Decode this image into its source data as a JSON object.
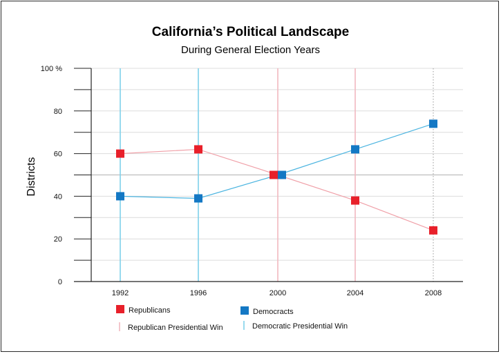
{
  "chart_data": {
    "type": "line",
    "title": "California’s Political Landscape",
    "subtitle": "During General Election Years",
    "xlabel": "",
    "ylabel": "Districts",
    "x": [
      "1992",
      "1996",
      "2000",
      "2004",
      "2008"
    ],
    "ylim": [
      0,
      100
    ],
    "yticks": [
      0,
      20,
      40,
      60,
      80,
      100
    ],
    "ytick_labels": [
      "0",
      "20",
      "40",
      "60",
      "80",
      "100 %"
    ],
    "series": [
      {
        "name": "Republicans",
        "color": "#e8202a",
        "line_color": "#f0a0a8",
        "marker": "square",
        "values": [
          60,
          62,
          50,
          38,
          24
        ]
      },
      {
        "name": "Democracts",
        "color": "#1478c4",
        "line_color": "#4ab4e0",
        "marker": "square",
        "values": [
          40,
          39,
          50,
          62,
          74
        ]
      }
    ],
    "presidential_wins": [
      {
        "x": "1992",
        "party": "Democratic"
      },
      {
        "x": "1996",
        "party": "Democratic"
      },
      {
        "x": "2000",
        "party": "Republican"
      },
      {
        "x": "2004",
        "party": "Republican"
      },
      {
        "x": "2008",
        "party": "Democratic"
      }
    ],
    "legend": {
      "placement": "bottom",
      "items": [
        {
          "label": "Republicans",
          "kind": "square",
          "color": "#e8202a"
        },
        {
          "label": "Democracts",
          "kind": "square",
          "color": "#1478c4"
        },
        {
          "label": "Republican Presidential Win",
          "kind": "line",
          "color": "#f2b8c0"
        },
        {
          "label": "Democratic Presidential Win",
          "kind": "line",
          "color": "#7fd0ea"
        }
      ]
    },
    "grid": true
  }
}
